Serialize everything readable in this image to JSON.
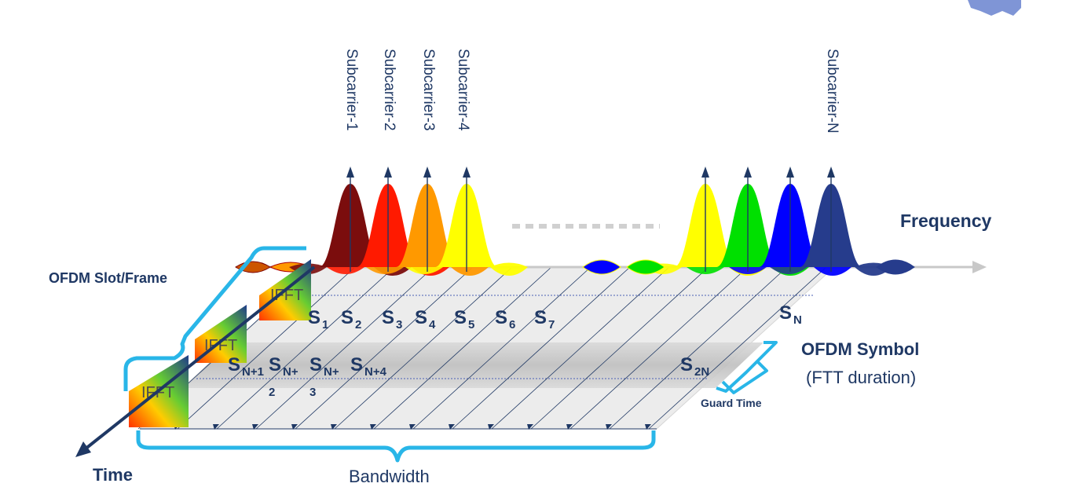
{
  "labels": {
    "frequency": "Frequency",
    "time": "Time",
    "bandwidth": "Bandwidth",
    "ofdm_slot": "OFDM Slot/Frame",
    "ofdm_symbol": "OFDM Symbol",
    "fft_duration": "(FTT duration)",
    "guard_time": "Guard Time"
  },
  "subcarriers": [
    "Subcarrier-1",
    "Subcarrier-2",
    "Subcarrier-3",
    "Subcarrier-4",
    "Subcarrier-N"
  ],
  "ifft_blocks": [
    "IFFT",
    "IFFT",
    "IFFT"
  ],
  "symbols_row1": [
    {
      "base": "S",
      "sub": "1"
    },
    {
      "base": "S",
      "sub": "2"
    },
    {
      "base": "S",
      "sub": "3"
    },
    {
      "base": "S",
      "sub": "4"
    },
    {
      "base": "S",
      "sub": "5"
    },
    {
      "base": "S",
      "sub": "6"
    },
    {
      "base": "S",
      "sub": "7"
    },
    {
      "base": "S",
      "sub": "N"
    }
  ],
  "symbols_row2": [
    {
      "base": "S",
      "sub": "N+1"
    },
    {
      "base": "S",
      "sub": "N+",
      "sub2": "2"
    },
    {
      "base": "S",
      "sub": "N+",
      "sub2": "3"
    },
    {
      "base": "S",
      "sub": "N+4"
    },
    {
      "base": "S",
      "sub": "2N"
    }
  ],
  "colors": {
    "label": "#1f3864",
    "brace": "#29b6e8",
    "axis_time": "#1f3864",
    "axis_freq": "#c8c8c8",
    "subcarrier_colors": [
      "#7b0d0d",
      "#ff1a00",
      "#ff9900",
      "#ffff00",
      "#ffff00",
      "#00e000",
      "#0000ff",
      "#263c8c"
    ]
  }
}
